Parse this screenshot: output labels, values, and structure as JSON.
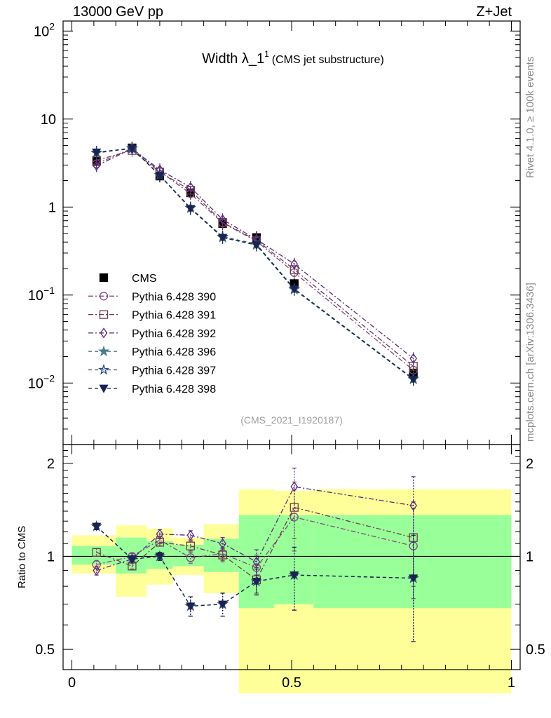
{
  "header": {
    "left": "13000 GeV pp",
    "right": "Z+Jet",
    "rivet": "Rivet 4.1.0, ≥ 100k events",
    "mcplots": "mcplots.cern.ch [arXiv:1306.3436]",
    "analysis": "(CMS_2021_I1920187)"
  },
  "chart_data": [
    {
      "type": "scatter",
      "panel": "main",
      "title": "Width λ_1",
      "title_sup": "1",
      "subtitle": "(CMS jet substructure)",
      "yscale": "log",
      "ylim": [
        0.002,
        130
      ],
      "xlim": [
        -0.02,
        1.02
      ],
      "yticks": [
        {
          "value": 0.01,
          "base": "10",
          "exp": "−2"
        },
        {
          "value": 0.1,
          "base": "10",
          "exp": "−1"
        },
        {
          "value": 1,
          "base": "1",
          "exp": ""
        },
        {
          "value": 10,
          "base": "10",
          "exp": ""
        },
        {
          "value": 100,
          "base": "10",
          "exp": "2"
        }
      ],
      "x": [
        0.056,
        0.137,
        0.2,
        0.27,
        0.343,
        0.42,
        0.506,
        0.777
      ],
      "series": [
        {
          "name": "CMS",
          "values": [
            3.3,
            4.7,
            2.25,
            1.45,
            0.65,
            0.45,
            0.135,
            0.013
          ],
          "color": "#000000",
          "marker": "square-filled"
        },
        {
          "name": "Pythia 6.428 390",
          "values": [
            3.1,
            4.65,
            2.55,
            1.42,
            0.66,
            0.41,
            0.18,
            0.014
          ],
          "color": "#7e4a7e",
          "marker": "circle-open",
          "dash": "dashdot"
        },
        {
          "name": "Pythia 6.428 391",
          "values": [
            3.4,
            4.4,
            2.5,
            1.55,
            0.67,
            0.42,
            0.195,
            0.0155
          ],
          "color": "#6e3c4a",
          "marker": "square-open",
          "dash": "dashdot"
        },
        {
          "name": "Pythia 6.428 392",
          "values": [
            2.95,
            4.6,
            2.65,
            1.68,
            0.72,
            0.43,
            0.225,
            0.019
          ],
          "color": "#5a2a82",
          "marker": "diamond-open",
          "dash": "dashdot"
        },
        {
          "name": "Pythia 6.428 396",
          "values": [
            4.1,
            4.7,
            2.3,
            0.97,
            0.45,
            0.37,
            0.115,
            0.011
          ],
          "color": "#4a7e86",
          "marker": "star-filled",
          "dash": "dashed"
        },
        {
          "name": "Pythia 6.428 397",
          "values": [
            4.15,
            4.62,
            2.3,
            0.98,
            0.46,
            0.38,
            0.118,
            0.0112
          ],
          "color": "#2e4a7a",
          "marker": "star-open",
          "dash": "dashed"
        },
        {
          "name": "Pythia 6.428 398",
          "values": [
            4.2,
            4.65,
            2.28,
            0.96,
            0.45,
            0.37,
            0.117,
            0.011
          ],
          "color": "#1a2450",
          "marker": "triangle-down-filled",
          "dash": "dashed"
        }
      ]
    },
    {
      "type": "scatter",
      "panel": "ratio",
      "ylabel": "Ratio to CMS",
      "yscale": "log",
      "ylim": [
        0.43,
        2.3
      ],
      "xlim": [
        -0.02,
        1.02
      ],
      "yticks": [
        0.5,
        1,
        2
      ],
      "ytick_labels": [
        "0.5",
        "1",
        "2"
      ],
      "xticks": [
        0,
        0.5,
        1
      ],
      "xtick_labels": [
        "0",
        "0.5",
        "1"
      ],
      "bins": [
        0,
        0.1,
        0.17,
        0.23,
        0.3,
        0.38,
        0.46,
        0.55,
        1.0
      ],
      "band_total": [
        [
          0.88,
          1.17
        ],
        [
          0.74,
          1.26
        ],
        [
          0.81,
          1.23
        ],
        [
          0.87,
          1.15
        ],
        [
          0.76,
          1.27
        ],
        [
          0.36,
          1.65
        ],
        [
          0.36,
          1.63
        ],
        [
          0.36,
          1.65
        ]
      ],
      "band_stat": [
        [
          0.94,
          1.08
        ],
        [
          0.88,
          1.15
        ],
        [
          0.91,
          1.12
        ],
        [
          0.93,
          1.09
        ],
        [
          0.89,
          1.14
        ],
        [
          0.68,
          1.36
        ],
        [
          0.7,
          1.36
        ],
        [
          0.68,
          1.36
        ]
      ],
      "x": [
        0.056,
        0.137,
        0.2,
        0.27,
        0.343,
        0.42,
        0.506,
        0.777
      ],
      "series": [
        {
          "name": "Pythia 6.428 390",
          "values": [
            0.94,
            1.0,
            1.13,
            0.99,
            1.02,
            0.92,
            1.34,
            1.08
          ],
          "err": [
            0.03,
            0.02,
            0.03,
            0.04,
            0.05,
            0.09,
            0.3,
            0.35
          ],
          "color": "#7e4a7e",
          "marker": "circle-open",
          "dash": "dashdot"
        },
        {
          "name": "Pythia 6.428 391",
          "values": [
            1.03,
            0.93,
            1.11,
            1.08,
            1.01,
            0.84,
            1.44,
            1.15
          ],
          "err": [
            0.03,
            0.02,
            0.03,
            0.04,
            0.05,
            0.08,
            0.3,
            0.35
          ],
          "color": "#6e3c4a",
          "marker": "square-open",
          "dash": "dashdot"
        },
        {
          "name": "Pythia 6.428 392",
          "values": [
            0.9,
            0.98,
            1.18,
            1.17,
            1.1,
            0.96,
            1.68,
            1.46
          ],
          "err": [
            0.03,
            0.02,
            0.04,
            0.04,
            0.05,
            0.09,
            0.25,
            0.35
          ],
          "color": "#5a2a82",
          "marker": "diamond-open",
          "dash": "dashdot"
        },
        {
          "name": "Pythia 6.428 396",
          "values": [
            1.25,
            0.98,
            1.0,
            0.69,
            0.7,
            0.83,
            0.87,
            0.85
          ],
          "err": [
            0.03,
            0.02,
            0.03,
            0.05,
            0.06,
            0.08,
            0.2,
            0.32
          ],
          "color": "#4a7e86",
          "marker": "star-filled",
          "dash": "dashed"
        },
        {
          "name": "Pythia 6.428 397",
          "values": [
            1.25,
            0.98,
            1.0,
            0.69,
            0.7,
            0.83,
            0.87,
            0.85
          ],
          "err": [
            0.03,
            0.02,
            0.03,
            0.05,
            0.06,
            0.08,
            0.2,
            0.32
          ],
          "color": "#2e4a7a",
          "marker": "star-open",
          "dash": "dashed"
        },
        {
          "name": "Pythia 6.428 398",
          "values": [
            1.25,
            0.98,
            1.0,
            0.69,
            0.7,
            0.83,
            0.87,
            0.85
          ],
          "err": [
            0.03,
            0.02,
            0.03,
            0.05,
            0.06,
            0.08,
            0.2,
            0.32
          ],
          "color": "#1a2450",
          "marker": "triangle-down-filled",
          "dash": "dashed"
        }
      ]
    }
  ]
}
